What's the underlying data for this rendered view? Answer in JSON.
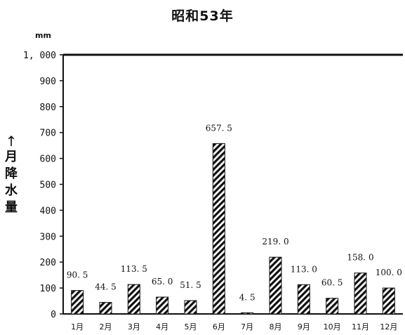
{
  "chart_data": {
    "type": "bar",
    "title": "昭和53年",
    "unit": "mm",
    "ylabel": "月降水量",
    "ylabel_arrow": "↑",
    "ylim": [
      0,
      1000
    ],
    "yticks": [
      0,
      100,
      200,
      300,
      400,
      500,
      600,
      700,
      800,
      900,
      1000
    ],
    "ytick_labels": [
      "0",
      "100",
      "200",
      "300",
      "400",
      "500",
      "600",
      "700",
      "800",
      "900",
      "1, 000"
    ],
    "categories": [
      "1月",
      "2月",
      "3月",
      "4月",
      "5月",
      "6月",
      "7月",
      "8月",
      "9月",
      "10月",
      "11月",
      "12月"
    ],
    "values": [
      90.5,
      44.5,
      113.5,
      65.0,
      51.5,
      657.5,
      4.5,
      219.0,
      113.0,
      60.5,
      158.0,
      100.0
    ],
    "value_labels": [
      "90. 5",
      "44. 5",
      "113. 5",
      "65. 0",
      "51. 5",
      "657. 5",
      "4. 5",
      "219. 0",
      "113. 0",
      "60. 5",
      "158. 0",
      "100. 0"
    ],
    "grid": false,
    "bar_fill": "diagonal-hatch",
    "colors": {
      "ink": "#111111",
      "background": "#ffffff"
    }
  }
}
